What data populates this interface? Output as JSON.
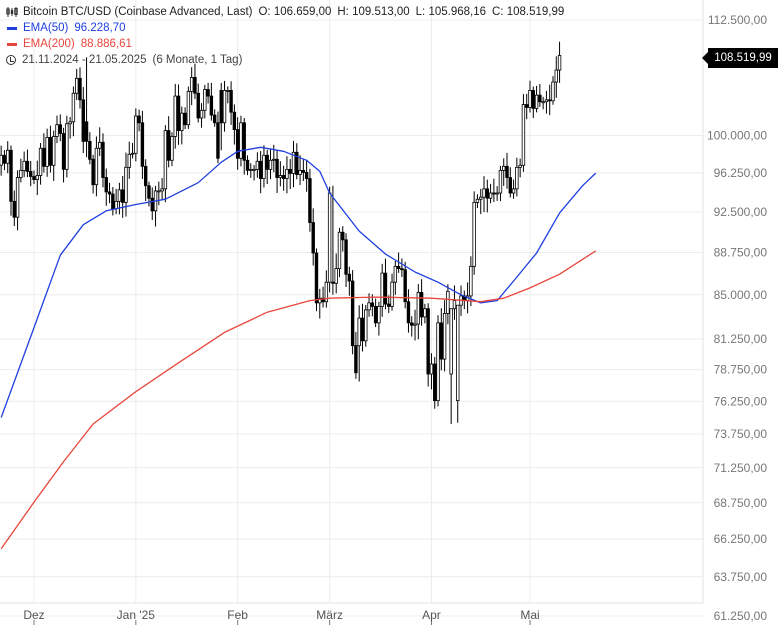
{
  "legend": {
    "instrument": "Bitcoin BTC/USD (Coinbase Advanced, Last)",
    "ohlc": {
      "o_label": "O:",
      "o_value": "106.659,00",
      "h_label": "H:",
      "h_value": "109.513,00",
      "l_label": "L:",
      "l_value": "105.968,16",
      "c_label": "C:",
      "c_value": "108.519,99"
    },
    "ema50": {
      "label": "EMA(50)",
      "value": "96.228,70",
      "color": "#1f3fe0"
    },
    "ema200": {
      "label": "EMA(200)",
      "value": "88.886,61",
      "color": "#e8453c"
    },
    "range": {
      "dates": "21.11.2024 - 21.05.2025",
      "period": "(6 Monate, 1 Tag)"
    }
  },
  "last_price_tag": "108.519,99",
  "chart_data": {
    "type": "candlestick",
    "y_axis": {
      "scale": "log",
      "range": [
        61250,
        115000
      ],
      "ticks": [
        {
          "value": 112500,
          "label": "112.500,00"
        },
        {
          "value": 100000,
          "label": "100.000,00"
        },
        {
          "value": 96250,
          "label": "96.250,00"
        },
        {
          "value": 92500,
          "label": "92.500,00"
        },
        {
          "value": 88750,
          "label": "88.750,00"
        },
        {
          "value": 85000,
          "label": "85.000,00"
        },
        {
          "value": 81250,
          "label": "81.250,00"
        },
        {
          "value": 78750,
          "label": "78.750,00"
        },
        {
          "value": 76250,
          "label": "76.250,00"
        },
        {
          "value": 73750,
          "label": "73.750,00"
        },
        {
          "value": 71250,
          "label": "71.250,00"
        },
        {
          "value": 68750,
          "label": "68.750,00"
        },
        {
          "value": 66250,
          "label": "66.250,00"
        },
        {
          "value": 63750,
          "label": "63.750,00"
        },
        {
          "value": 61250,
          "label": "61.250,00"
        }
      ]
    },
    "x_axis": {
      "ticks": [
        {
          "date": "2024-12-01",
          "label": "Dez"
        },
        {
          "date": "2025-01-01",
          "label": "Jan '25"
        },
        {
          "date": "2025-02-01",
          "label": "Feb"
        },
        {
          "date": "2025-03-01",
          "label": "März"
        },
        {
          "date": "2025-04-01",
          "label": "Apr"
        },
        {
          "date": "2025-05-01",
          "label": "Mai"
        }
      ],
      "range": [
        "2024-11-21",
        "2025-05-21"
      ]
    },
    "grid": true,
    "candles": {
      "start": "2024-11-21",
      "end": "2025-05-21",
      "interval": "1 day",
      "close": [
        98000,
        97200,
        98500,
        93500,
        92000,
        95800,
        96500,
        97400,
        96400,
        95900,
        95600,
        96000,
        98700,
        96900,
        99800,
        97000,
        99900,
        101100,
        100200,
        96600,
        101200,
        101400,
        104400,
        106000,
        103700,
        99400,
        99400,
        97600,
        95100,
        98700,
        99300,
        95800,
        94400,
        94200,
        92800,
        93500,
        94600,
        93400,
        96800,
        98100,
        98200,
        102000,
        101300,
        96900,
        95000,
        93800,
        92600,
        94500,
        94500,
        94700,
        100500,
        97500,
        99900,
        104100,
        100500,
        102300,
        101100,
        104600,
        106100,
        104400,
        101800,
        102600,
        104800,
        104100,
        102100,
        101300,
        97700,
        101300,
        104700,
        104700,
        102400,
        100600,
        97700,
        101300,
        97500,
        96500,
        96600,
        96600,
        97400,
        95700,
        98000,
        96600,
        97500,
        97600,
        95800,
        96000,
        95700,
        96600,
        96200,
        98300,
        96100,
        96500,
        96300,
        95700,
        91500,
        88700,
        84300,
        84700,
        84400,
        86100,
        94300,
        86000,
        87300,
        90600,
        89900,
        86800,
        86200,
        80700,
        78500,
        83000,
        81100,
        83700,
        84300,
        84000,
        82600,
        84000,
        86900,
        84200,
        84000,
        86100,
        87500,
        87300,
        87200,
        84400,
        82600,
        82400,
        82500,
        85200,
        83100,
        83800,
        78400,
        79200,
        76300,
        82600,
        79600,
        83400,
        85300,
        83800,
        84500,
        84100,
        84900,
        84500,
        84900,
        87500,
        93400,
        93700,
        93900,
        94700,
        93800,
        94300,
        94200,
        94300,
        96500,
        96900,
        95800,
        94300,
        94700,
        96800,
        97000,
        103200,
        102900,
        104700,
        102800,
        104200,
        103500,
        103500,
        103700,
        103600,
        105600,
        106900,
        108500
      ]
    },
    "series": [
      {
        "name": "EMA(50)",
        "color": "#1f3fe0",
        "points": [
          [
            "2024-11-21",
            75000
          ],
          [
            "2024-12-01",
            82200
          ],
          [
            "2024-12-09",
            88500
          ],
          [
            "2024-12-16",
            91300
          ],
          [
            "2024-12-23",
            92600
          ],
          [
            "2025-01-01",
            93200
          ],
          [
            "2025-01-10",
            93700
          ],
          [
            "2025-01-20",
            95300
          ],
          [
            "2025-01-27",
            97300
          ],
          [
            "2025-02-01",
            98400
          ],
          [
            "2025-02-08",
            98800
          ],
          [
            "2025-02-15",
            98400
          ],
          [
            "2025-02-22",
            97500
          ],
          [
            "2025-02-26",
            96400
          ],
          [
            "2025-03-01",
            94300
          ],
          [
            "2025-03-10",
            90700
          ],
          [
            "2025-03-18",
            88600
          ],
          [
            "2025-03-27",
            87000
          ],
          [
            "2025-04-03",
            86100
          ],
          [
            "2025-04-10",
            85000
          ],
          [
            "2025-04-16",
            84300
          ],
          [
            "2025-04-21",
            84500
          ],
          [
            "2025-04-26",
            86200
          ],
          [
            "2025-05-03",
            88700
          ],
          [
            "2025-05-10",
            92400
          ],
          [
            "2025-05-17",
            95000
          ],
          [
            "2025-05-21",
            96230
          ]
        ]
      },
      {
        "name": "EMA(200)",
        "color": "#e8453c",
        "points": [
          [
            "2024-11-21",
            65600
          ],
          [
            "2024-12-01",
            68800
          ],
          [
            "2024-12-10",
            71700
          ],
          [
            "2024-12-19",
            74500
          ],
          [
            "2025-01-01",
            77000
          ],
          [
            "2025-01-14",
            79300
          ],
          [
            "2025-01-28",
            81800
          ],
          [
            "2025-02-10",
            83500
          ],
          [
            "2025-02-23",
            84500
          ],
          [
            "2025-03-01",
            84700
          ],
          [
            "2025-03-15",
            84800
          ],
          [
            "2025-04-01",
            84700
          ],
          [
            "2025-04-16",
            84400
          ],
          [
            "2025-04-23",
            84700
          ],
          [
            "2025-05-01",
            85600
          ],
          [
            "2025-05-10",
            86800
          ],
          [
            "2025-05-21",
            88890
          ]
        ]
      }
    ]
  }
}
